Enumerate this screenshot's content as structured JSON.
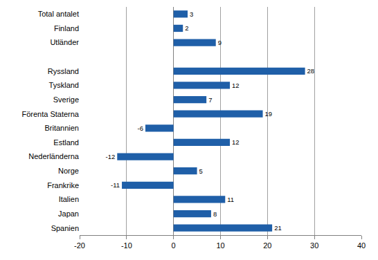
{
  "chart_data": {
    "type": "bar",
    "orientation": "horizontal",
    "categories": [
      "Total antalet",
      "Finland",
      "Utländer",
      null,
      "Ryssland",
      "Tyskland",
      "Sverige",
      "Förenta Staterna",
      "Britannien",
      "Estland",
      "Nederländerna",
      "Norge",
      "Frankrike",
      "Italien",
      "Japan",
      "Spanien"
    ],
    "values": [
      3,
      2,
      9,
      null,
      28,
      12,
      7,
      19,
      -6,
      12,
      -12,
      5,
      -11,
      11,
      8,
      21
    ],
    "color": "#1f5fa8",
    "xlim": [
      -20,
      40
    ],
    "xticks": [
      -20,
      -10,
      0,
      10,
      20,
      30,
      40
    ],
    "grid": true,
    "data_labels": true
  }
}
